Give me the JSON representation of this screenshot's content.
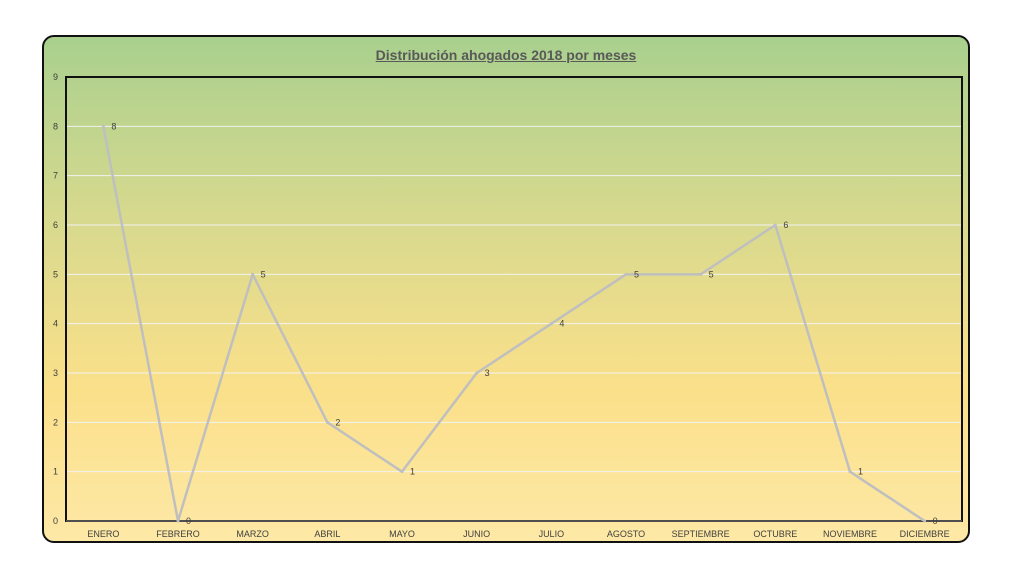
{
  "chart_data": {
    "type": "line",
    "title": "Distribución ahogados 2018 por meses",
    "xlabel": "",
    "ylabel": "",
    "categories": [
      "ENERO",
      "FEBRERO",
      "MARZO",
      "ABRIL",
      "MAYO",
      "JUNIO",
      "JULIO",
      "AGOSTO",
      "SEPTIEMBRE",
      "OCTUBRE",
      "NOVIEMBRE",
      "DICIEMBRE"
    ],
    "series": [
      {
        "values": [
          8,
          0,
          5,
          2,
          1,
          3,
          4,
          5,
          5,
          6,
          1,
          0
        ]
      }
    ],
    "ylim": [
      0,
      9
    ],
    "yticks": [
      0,
      1,
      2,
      3,
      4,
      5,
      6,
      7,
      8,
      9
    ],
    "grid": true,
    "legend": "none",
    "data_labels": true,
    "colors": {
      "line": "#bfbfbf",
      "title": "#595959",
      "gridline": "#f2f2f2",
      "background_top": "#a9d08e",
      "background_bottom": "#fde8a6"
    }
  }
}
